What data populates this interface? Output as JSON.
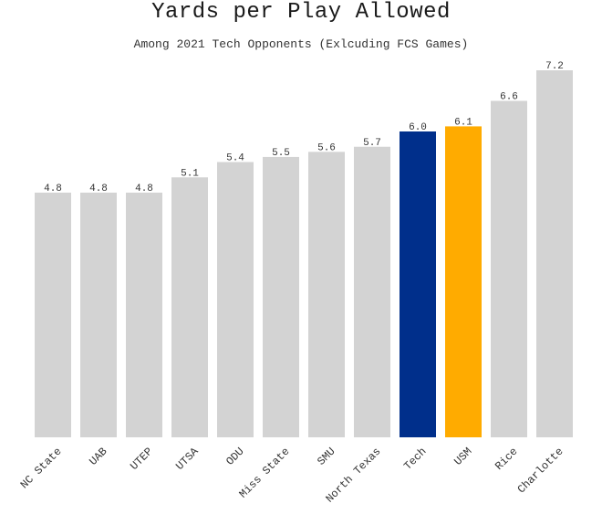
{
  "chart_data": {
    "type": "bar",
    "title": "Yards per Play Allowed",
    "subtitle": "Among 2021 Tech Opponents (Exlcuding FCS Games)",
    "categories": [
      "NC State",
      "UAB",
      "UTEP",
      "UTSA",
      "ODU",
      "Miss State",
      "SMU",
      "North Texas",
      "Tech",
      "USM",
      "Rice",
      "Charlotte"
    ],
    "values": [
      4.8,
      4.8,
      4.8,
      5.1,
      5.4,
      5.5,
      5.6,
      5.7,
      6.0,
      6.1,
      6.6,
      7.2
    ],
    "value_labels": [
      "4.8",
      "4.8",
      "4.8",
      "5.1",
      "5.4",
      "5.5",
      "5.6",
      "5.7",
      "6.0",
      "6.1",
      "6.6",
      "7.2"
    ],
    "colors": [
      "#d3d3d3",
      "#d3d3d3",
      "#d3d3d3",
      "#d3d3d3",
      "#d3d3d3",
      "#d3d3d3",
      "#d3d3d3",
      "#d3d3d3",
      "#002f8b",
      "#ffab00",
      "#d3d3d3",
      "#d3d3d3"
    ],
    "ylim": [
      0,
      7.2
    ],
    "grid": false,
    "xlabel": "",
    "ylabel": ""
  }
}
